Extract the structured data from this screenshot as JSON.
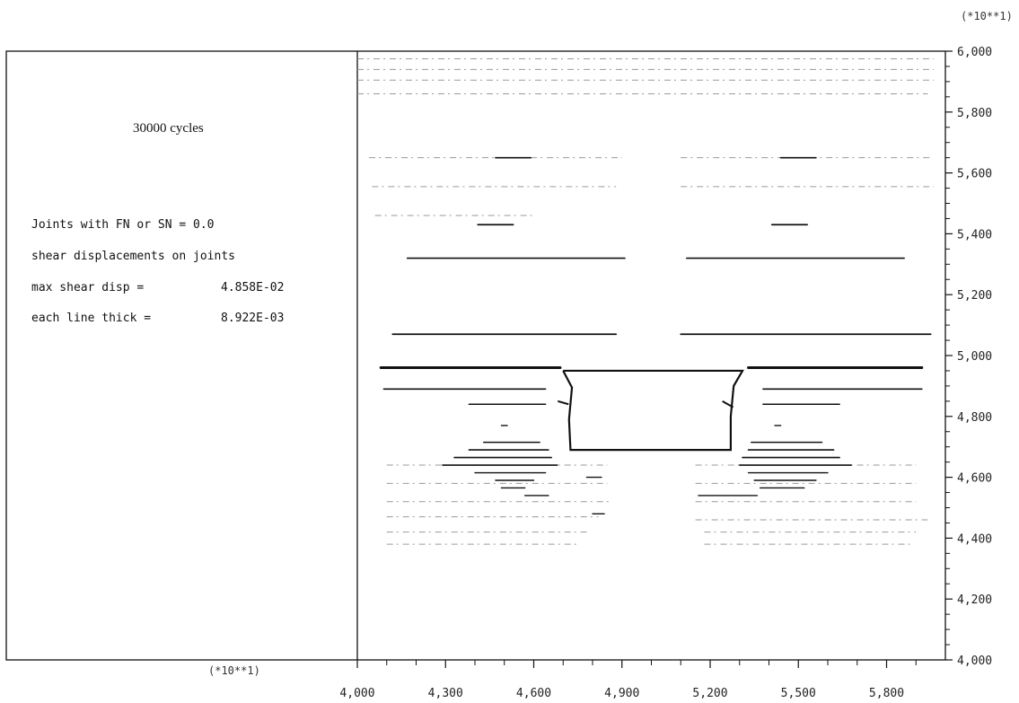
{
  "chart_data": {
    "type": "plot",
    "x_multiplier": "(*10**1)",
    "y_multiplier": "(*10**1)",
    "xlim": [
      4000,
      6000
    ],
    "ylim": [
      4000,
      6000
    ],
    "x_ticks": [
      "4,000",
      "4,300",
      "4,600",
      "4,900",
      "5,200",
      "5,500",
      "5,800"
    ],
    "x_tick_values": [
      4000,
      4300,
      4600,
      4900,
      5200,
      5500,
      5800
    ],
    "y_ticks": [
      "4,000",
      "4,200",
      "4,400",
      "4,600",
      "4,800",
      "5,000",
      "5,200",
      "5,400",
      "5,600",
      "5,800",
      "6,000"
    ],
    "y_tick_values": [
      4000,
      4200,
      4400,
      4600,
      4800,
      5000,
      5200,
      5400,
      5600,
      5800,
      6000
    ],
    "info_panel": {
      "title": "30000 cycles",
      "line1": "Joints with FN or SN = 0.0",
      "line2": "shear displacements on joints",
      "line3_label": "max shear disp =",
      "line3_value": "4.858E-02",
      "line4_label": "each line thick =",
      "line4_value": "8.922E-03"
    },
    "opening_outline": [
      [
        4700,
        4950
      ],
      [
        4730,
        4895
      ],
      [
        4720,
        4790
      ],
      [
        4725,
        4690
      ],
      [
        5270,
        4690
      ],
      [
        5270,
        4800
      ],
      [
        5280,
        4900
      ],
      [
        5310,
        4950
      ],
      [
        4700,
        4950
      ]
    ],
    "heavy_lines": [
      {
        "x1": 4080,
        "x2": 4690,
        "y": 4960,
        "w": 3
      },
      {
        "x1": 5330,
        "x2": 5920,
        "y": 4960,
        "w": 3
      },
      {
        "x1": 4120,
        "x2": 4880,
        "y": 5070,
        "w": 1.8
      },
      {
        "x1": 5100,
        "x2": 5950,
        "y": 5070,
        "w": 1.8
      },
      {
        "x1": 4170,
        "x2": 4910,
        "y": 5320,
        "w": 1.6
      },
      {
        "x1": 5120,
        "x2": 5860,
        "y": 5320,
        "w": 1.6
      },
      {
        "x1": 4090,
        "x2": 4640,
        "y": 4890,
        "w": 1.6
      },
      {
        "x1": 5380,
        "x2": 5920,
        "y": 4890,
        "w": 1.6
      },
      {
        "x1": 4380,
        "x2": 4640,
        "y": 4840,
        "w": 1.6
      },
      {
        "x1": 5380,
        "x2": 5640,
        "y": 4840,
        "w": 1.6
      },
      {
        "x1": 4410,
        "x2": 4530,
        "y": 5430,
        "w": 1.8
      },
      {
        "x1": 5410,
        "x2": 5530,
        "y": 5430,
        "w": 1.8
      },
      {
        "x1": 4470,
        "x2": 4590,
        "y": 5650,
        "w": 1.6
      },
      {
        "x1": 5440,
        "x2": 5560,
        "y": 5650,
        "w": 1.6
      },
      {
        "x1": 4430,
        "x2": 4620,
        "y": 4715,
        "w": 1.6
      },
      {
        "x1": 4380,
        "x2": 4650,
        "y": 4690,
        "w": 1.6
      },
      {
        "x1": 4330,
        "x2": 4660,
        "y": 4665,
        "w": 1.6
      },
      {
        "x1": 4290,
        "x2": 4680,
        "y": 4640,
        "w": 1.6
      },
      {
        "x1": 4400,
        "x2": 4640,
        "y": 4615,
        "w": 1.4
      },
      {
        "x1": 4470,
        "x2": 4600,
        "y": 4590,
        "w": 1.4
      },
      {
        "x1": 4490,
        "x2": 4570,
        "y": 4565,
        "w": 1.4
      },
      {
        "x1": 5340,
        "x2": 5580,
        "y": 4715,
        "w": 1.6
      },
      {
        "x1": 5330,
        "x2": 5620,
        "y": 4690,
        "w": 1.6
      },
      {
        "x1": 5310,
        "x2": 5640,
        "y": 4665,
        "w": 1.6
      },
      {
        "x1": 5300,
        "x2": 5680,
        "y": 4640,
        "w": 1.6
      },
      {
        "x1": 5330,
        "x2": 5600,
        "y": 4615,
        "w": 1.4
      },
      {
        "x1": 5350,
        "x2": 5560,
        "y": 4590,
        "w": 1.4
      },
      {
        "x1": 5370,
        "x2": 5520,
        "y": 4565,
        "w": 1.4
      },
      {
        "x1": 5160,
        "x2": 5360,
        "y": 4540,
        "w": 1.4
      },
      {
        "x1": 4570,
        "x2": 4650,
        "y": 4540,
        "w": 1.4
      },
      {
        "x1": 4780,
        "x2": 4830,
        "y": 4600,
        "w": 1.4
      },
      {
        "x1": 4800,
        "x2": 4840,
        "y": 4480,
        "w": 1.4
      },
      {
        "x1": 4490,
        "x2": 4510,
        "y": 4770,
        "w": 1.4
      },
      {
        "x1": 5420,
        "x2": 5440,
        "y": 4770,
        "w": 1.4
      }
    ],
    "faint_lines": [
      {
        "x1": 4000,
        "x2": 5960,
        "y": 5975
      },
      {
        "x1": 4000,
        "x2": 5960,
        "y": 5940
      },
      {
        "x1": 4000,
        "x2": 5960,
        "y": 5905
      },
      {
        "x1": 4000,
        "x2": 5940,
        "y": 5860
      },
      {
        "x1": 4040,
        "x2": 4900,
        "y": 5650
      },
      {
        "x1": 5100,
        "x2": 5950,
        "y": 5650
      },
      {
        "x1": 4050,
        "x2": 4880,
        "y": 5555
      },
      {
        "x1": 5100,
        "x2": 5960,
        "y": 5555
      },
      {
        "x1": 4060,
        "x2": 4600,
        "y": 5460
      },
      {
        "x1": 4100,
        "x2": 4850,
        "y": 4640
      },
      {
        "x1": 4100,
        "x2": 4850,
        "y": 4580
      },
      {
        "x1": 4100,
        "x2": 4860,
        "y": 4520
      },
      {
        "x1": 4100,
        "x2": 4820,
        "y": 4470
      },
      {
        "x1": 4100,
        "x2": 4780,
        "y": 4420
      },
      {
        "x1": 4100,
        "x2": 4750,
        "y": 4380
      },
      {
        "x1": 5150,
        "x2": 5900,
        "y": 4640
      },
      {
        "x1": 5150,
        "x2": 5900,
        "y": 4580
      },
      {
        "x1": 5150,
        "x2": 5900,
        "y": 4520
      },
      {
        "x1": 5150,
        "x2": 5940,
        "y": 4460
      },
      {
        "x1": 5180,
        "x2": 5900,
        "y": 4420
      },
      {
        "x1": 5180,
        "x2": 5880,
        "y": 4380
      }
    ],
    "short_ticks": [
      {
        "x": 4700,
        "y1": 4850,
        "y2": 4840
      },
      {
        "x": 5260,
        "y1": 4850,
        "y2": 4830
      }
    ]
  }
}
